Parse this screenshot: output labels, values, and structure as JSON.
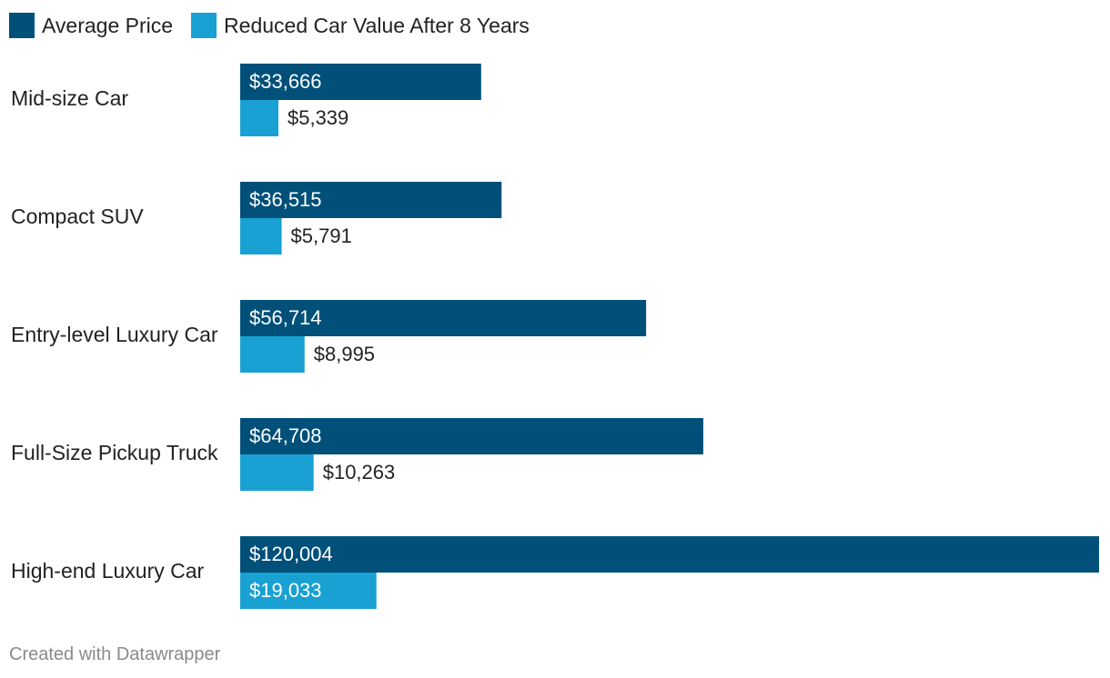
{
  "legend": [
    {
      "name": "Average Price",
      "color": "#00507a"
    },
    {
      "name": "Reduced Car Value After 8 Years",
      "color": "#18a1d2"
    }
  ],
  "chart_data": {
    "type": "bar",
    "orientation": "horizontal",
    "categories": [
      "Mid-size Car",
      "Compact SUV",
      "Entry-level Luxury Car",
      "Full-Size Pickup Truck",
      "High-end Luxury Car"
    ],
    "series": [
      {
        "name": "Average Price",
        "color": "#00507a",
        "values": [
          33666,
          36515,
          56714,
          64708,
          120004
        ],
        "labels": [
          "$33,666",
          "$36,515",
          "$56,714",
          "$64,708",
          "$120,004"
        ]
      },
      {
        "name": "Reduced Car Value After 8 Years",
        "color": "#18a1d2",
        "values": [
          5339,
          5791,
          8995,
          10263,
          19033
        ],
        "labels": [
          "$5,339",
          "$5,791",
          "$8,995",
          "$10,263",
          "$19,033"
        ]
      }
    ],
    "xlim": [
      0,
      120004
    ],
    "grid": false,
    "legend_position": "top-left"
  },
  "footer": {
    "credit": "Created with Datawrapper"
  }
}
